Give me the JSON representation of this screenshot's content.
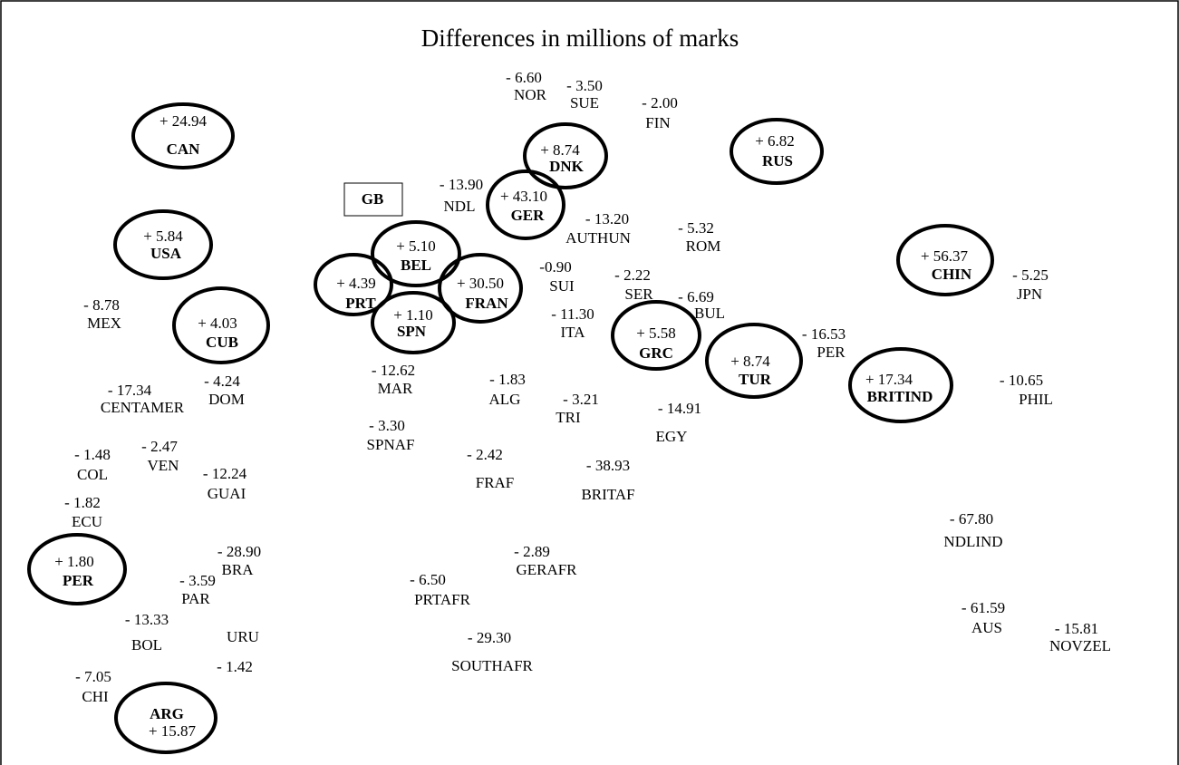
{
  "title": "Differences in millions of marks",
  "box": {
    "label": "GB"
  },
  "regions": [
    {
      "label": "CAN",
      "value": "+ 24.94",
      "circled": true
    },
    {
      "label": "DNK",
      "value": "+ 8.74",
      "circled": true
    },
    {
      "label": "RUS",
      "value": "+ 6.82",
      "circled": true
    },
    {
      "label": "GER",
      "value": "+ 43.10",
      "circled": true
    },
    {
      "label": "USA",
      "value": "+ 5.84",
      "circled": true
    },
    {
      "label": "BEL",
      "value": "+ 5.10",
      "circled": true
    },
    {
      "label": "PRT",
      "value": "+ 4.39",
      "circled": true
    },
    {
      "label": "FRAN",
      "value": "+ 30.50",
      "circled": true
    },
    {
      "label": "SPN",
      "value": "+ 1.10",
      "circled": true
    },
    {
      "label": "CUB",
      "value": "+ 4.03",
      "circled": true
    },
    {
      "label": "CHIN",
      "value": "+ 56.37",
      "circled": true
    },
    {
      "label": "GRC",
      "value": "+ 5.58",
      "circled": true
    },
    {
      "label": "TUR",
      "value": "+ 8.74",
      "circled": true
    },
    {
      "label": "BRITIND",
      "value": "+ 17.34",
      "circled": true
    },
    {
      "label": "PER",
      "value": "+ 1.80",
      "circled": true
    },
    {
      "label": "ARG",
      "value": "+ 15.87",
      "circled": true
    },
    {
      "label": "NOR",
      "value": "- 6.60",
      "circled": false
    },
    {
      "label": "SUE",
      "value": "- 3.50",
      "circled": false
    },
    {
      "label": "FIN",
      "value": "- 2.00",
      "circled": false
    },
    {
      "label": "NDL",
      "value": "- 13.90",
      "circled": false
    },
    {
      "label": "AUTHUN",
      "value": "- 13.20",
      "circled": false
    },
    {
      "label": "ROM",
      "value": "- 5.32",
      "circled": false
    },
    {
      "label": "SUI",
      "value": "-0.90",
      "circled": false
    },
    {
      "label": "SER",
      "value": "- 2.22",
      "circled": false
    },
    {
      "label": "BUL",
      "value": "- 6.69",
      "circled": false
    },
    {
      "label": "JPN",
      "value": "- 5.25",
      "circled": false
    },
    {
      "label": "MEX",
      "value": "- 8.78",
      "circled": false
    },
    {
      "label": "ITA",
      "value": "- 11.30",
      "circled": false
    },
    {
      "label": "PER",
      "value": "- 16.53",
      "circled": false
    },
    {
      "label": "MAR",
      "value": "- 12.62",
      "circled": false
    },
    {
      "label": "ALG",
      "value": "- 1.83",
      "circled": false
    },
    {
      "label": "CENTAMER",
      "value": "- 17.34",
      "circled": false
    },
    {
      "label": "DOM",
      "value": "- 4.24",
      "circled": false
    },
    {
      "label": "PHIL",
      "value": "- 10.65",
      "circled": false
    },
    {
      "label": "TRI",
      "value": "- 3.21",
      "circled": false
    },
    {
      "label": "EGY",
      "value": "- 14.91",
      "circled": false
    },
    {
      "label": "SPNAF",
      "value": "- 3.30",
      "circled": false
    },
    {
      "label": "COL",
      "value": "- 1.48",
      "circled": false
    },
    {
      "label": "VEN",
      "value": "- 2.47",
      "circled": false
    },
    {
      "label": "FRAF",
      "value": "- 2.42",
      "circled": false
    },
    {
      "label": "BRITAF",
      "value": "- 38.93",
      "circled": false
    },
    {
      "label": "GUAI",
      "value": "- 12.24",
      "circled": false
    },
    {
      "label": "ECU",
      "value": "- 1.82",
      "circled": false
    },
    {
      "label": "NDLIND",
      "value": "- 67.80",
      "circled": false
    },
    {
      "label": "BRA",
      "value": "- 28.90",
      "circled": false
    },
    {
      "label": "GERAFR",
      "value": "- 2.89",
      "circled": false
    },
    {
      "label": "PAR",
      "value": "- 3.59",
      "circled": false
    },
    {
      "label": "PRTAFR",
      "value": "- 6.50",
      "circled": false
    },
    {
      "label": "BOL",
      "value": "- 13.33",
      "circled": false
    },
    {
      "label": "URU",
      "value": "- 1.42",
      "circled": false
    },
    {
      "label": "SOUTHAFR",
      "value": "- 29.30",
      "circled": false
    },
    {
      "label": "AUS",
      "value": "- 61.59",
      "circled": false
    },
    {
      "label": "NOVZEL",
      "value": "- 15.81",
      "circled": false
    },
    {
      "label": "CHI",
      "value": "- 7.05",
      "circled": false
    }
  ]
}
